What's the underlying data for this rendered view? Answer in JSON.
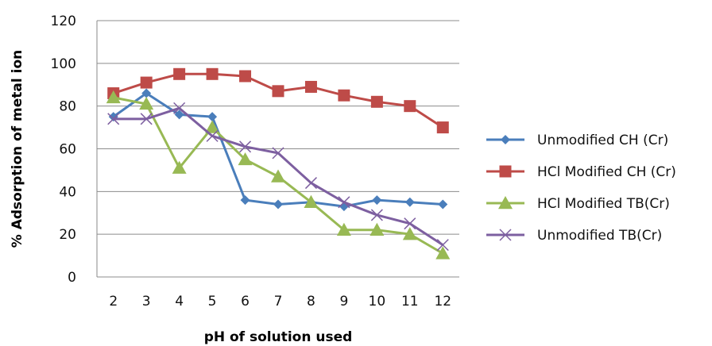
{
  "chart_data": {
    "type": "line",
    "title": "",
    "xlabel": "pH of solution used",
    "ylabel": "% Adsorption of metal ion",
    "categories": [
      "2",
      "3",
      "4",
      "5",
      "6",
      "7",
      "8",
      "9",
      "10",
      "11",
      "12"
    ],
    "ylim": [
      0,
      120
    ],
    "yticks": [
      "0",
      "20",
      "40",
      "60",
      "80",
      "100",
      "120"
    ],
    "grid": "horizontal",
    "legend_position": "right",
    "series": [
      {
        "name": "Unmodified CH (Cr)",
        "color": "#4a7ebb",
        "marker": "diamond",
        "values": [
          75,
          86,
          76,
          75,
          36,
          34,
          35,
          33,
          36,
          35,
          34
        ]
      },
      {
        "name": "HCl Modified CH (Cr)",
        "color": "#be4b48",
        "marker": "square",
        "values": [
          86,
          91,
          95,
          95,
          94,
          87,
          89,
          85,
          82,
          80,
          70
        ]
      },
      {
        "name": "HCl Modified TB(Cr)",
        "color": "#98b954",
        "marker": "triangle",
        "values": [
          84,
          81,
          51,
          70,
          55,
          47,
          35,
          22,
          22,
          20,
          11
        ]
      },
      {
        "name": "Unmodified TB(Cr)",
        "color": "#7d5fa0",
        "marker": "x",
        "values": [
          74,
          74,
          79,
          66,
          61,
          58,
          44,
          35,
          29,
          25,
          15
        ]
      }
    ]
  }
}
